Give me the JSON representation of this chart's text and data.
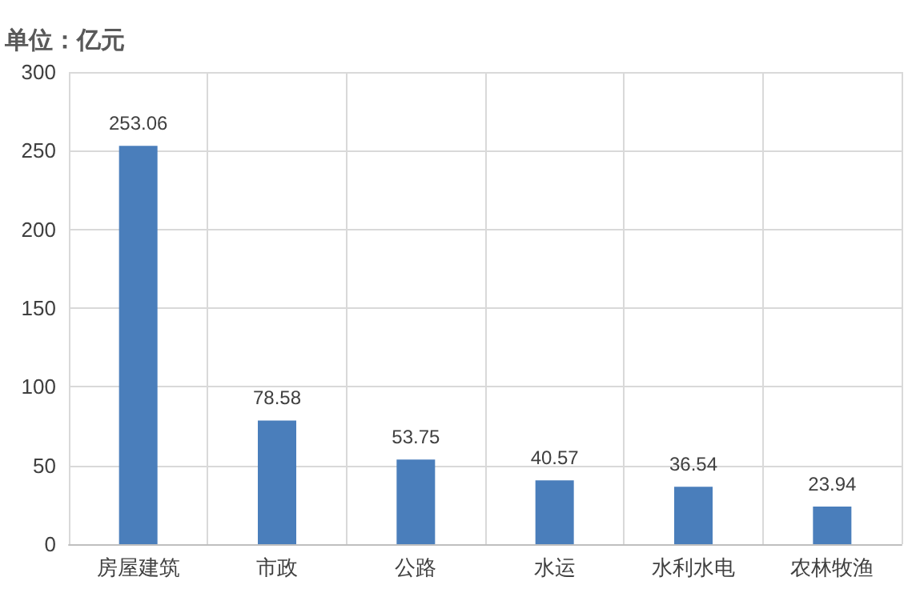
{
  "chart_data": {
    "type": "bar",
    "ylabel": "单位：亿元",
    "categories": [
      "房屋建筑",
      "市政",
      "公路",
      "水运",
      "水利水电",
      "农林牧渔"
    ],
    "values": [
      253.06,
      78.58,
      53.75,
      40.57,
      36.54,
      23.94
    ],
    "color": "#4a7ebb",
    "ylim": [
      0,
      300
    ],
    "yticks": [
      0,
      50,
      100,
      150,
      200,
      250,
      300
    ],
    "grid": true,
    "data_labels": true
  }
}
